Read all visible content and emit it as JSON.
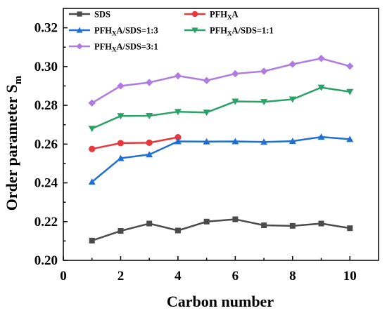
{
  "chart_data": {
    "type": "line",
    "xlabel": "Carbon  number",
    "ylabel_main": "Order parameter S",
    "ylabel_sub": "m",
    "xlim": [
      0,
      11
    ],
    "ylim": [
      0.2,
      0.33
    ],
    "x_ticks": [
      0,
      2,
      4,
      6,
      8,
      10
    ],
    "y_ticks": [
      0.2,
      0.22,
      0.24,
      0.26,
      0.28,
      0.3,
      0.32
    ],
    "y_tick_labels": [
      "0.20",
      "0.22",
      "0.24",
      "0.26",
      "0.28",
      "0.30",
      "0.32"
    ],
    "grid": false,
    "legend_position": "top-left",
    "series": [
      {
        "name": "SDS",
        "name_parts": [
          [
            "SDS",
            ""
          ]
        ],
        "color": "#4a4a4a",
        "marker": "square",
        "x": [
          1,
          2,
          3,
          4,
          5,
          6,
          7,
          8,
          9,
          10
        ],
        "values": [
          0.2102,
          0.2152,
          0.219,
          0.2154,
          0.22,
          0.2212,
          0.2181,
          0.2178,
          0.219,
          0.2166
        ]
      },
      {
        "name": "PFHXA",
        "name_parts": [
          [
            "PFH",
            ""
          ],
          [
            "X",
            "sub"
          ],
          [
            "A",
            ""
          ]
        ],
        "color": "#e8383b",
        "marker": "circle",
        "x": [
          1,
          2,
          3,
          4
        ],
        "values": [
          0.2575,
          0.2605,
          0.2607,
          0.2635
        ]
      },
      {
        "name": "PFHXA/SDS=1:3",
        "name_parts": [
          [
            "PFH",
            ""
          ],
          [
            "X",
            "sub"
          ],
          [
            "A/SDS=1:3",
            ""
          ]
        ],
        "color": "#1f6fd6",
        "marker": "triangle-up",
        "x": [
          1,
          2,
          3,
          4,
          5,
          6,
          7,
          8,
          9,
          10
        ],
        "values": [
          0.2405,
          0.2527,
          0.2546,
          0.2614,
          0.2613,
          0.2614,
          0.2611,
          0.2615,
          0.2637,
          0.2625
        ]
      },
      {
        "name": "PFHXA/SDS=1:1",
        "name_parts": [
          [
            "PFH",
            ""
          ],
          [
            "X",
            "sub"
          ],
          [
            "A/SDS=1:1",
            ""
          ]
        ],
        "color": "#2aa166",
        "marker": "triangle-down",
        "x": [
          1,
          2,
          3,
          4,
          5,
          6,
          7,
          8,
          9,
          10
        ],
        "values": [
          0.268,
          0.2745,
          0.2746,
          0.2767,
          0.2763,
          0.282,
          0.2818,
          0.2831,
          0.2892,
          0.287
        ]
      },
      {
        "name": "PFHXA/SDS=3:1",
        "name_parts": [
          [
            "PFH",
            ""
          ],
          [
            "X",
            "sub"
          ],
          [
            "A/SDS=3:1",
            ""
          ]
        ],
        "color": "#b07be0",
        "marker": "diamond",
        "x": [
          1,
          2,
          3,
          4,
          5,
          6,
          7,
          8,
          9,
          10
        ],
        "values": [
          0.2812,
          0.29,
          0.2918,
          0.2952,
          0.2928,
          0.2963,
          0.2976,
          0.3012,
          0.3042,
          0.3002
        ]
      }
    ]
  }
}
